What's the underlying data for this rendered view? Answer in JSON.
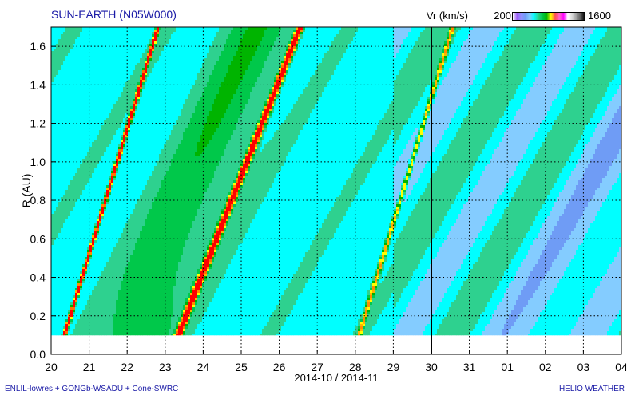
{
  "header": {
    "title": "SUN-EARTH (N05W000)",
    "colorbar_label": "Vr (km/s)",
    "colorbar_min": "200",
    "colorbar_max": "1600"
  },
  "footer": {
    "left": "ENLIL-lowres + GONGb-WSADU + Cone-SWRC",
    "right": "HELIO WEATHER"
  },
  "chart_data": {
    "type": "heatmap",
    "title": "SUN-EARTH (N05W000)",
    "xlabel": "2014-10 / 2014-11",
    "ylabel": "R (AU)",
    "x_tick_labels": [
      "20",
      "21",
      "22",
      "23",
      "24",
      "25",
      "26",
      "27",
      "28",
      "29",
      "30",
      "31",
      "01",
      "02",
      "03",
      "04"
    ],
    "x_range_days": [
      0,
      15
    ],
    "y_ticks": [
      "0.0",
      "0.2",
      "0.4",
      "0.6",
      "0.8",
      "1.0",
      "1.2",
      "1.4",
      "1.6"
    ],
    "y_range": [
      0,
      1.7
    ],
    "y_data_min": 0.1,
    "colorbar": {
      "label": "Vr (km/s)",
      "min": 200,
      "max": 1600
    },
    "current_time_marker": "30",
    "grid": true,
    "palette": [
      "#9393ff",
      "#6f9cf5",
      "#84ccff",
      "#00ffff",
      "#2ed18f",
      "#00c84a",
      "#00b400",
      "#ffff00",
      "#ffb400",
      "#ff8c00",
      "#ff7000",
      "#ff0000"
    ]
  }
}
